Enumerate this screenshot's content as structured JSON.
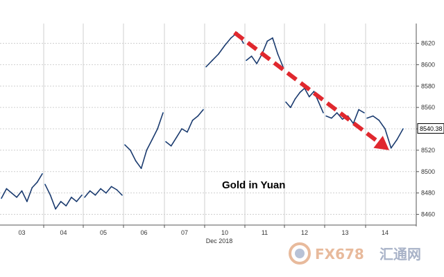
{
  "chart_data": {
    "type": "line",
    "title": "",
    "annotation": "Gold in Yuan",
    "xlabel": "Dec 2018",
    "ylabel": "",
    "x_tick_labels": [
      "03",
      "04",
      "05",
      "06",
      "07",
      "10",
      "11",
      "12",
      "13",
      "14"
    ],
    "y_tick_labels": [
      "8460",
      "8480",
      "8500",
      "8520",
      "8540",
      "8560",
      "8580",
      "8600",
      "8620"
    ],
    "ylim": [
      8450,
      8632
    ],
    "last_value_label": "8540.38",
    "grid": true,
    "legend": "none",
    "series": [
      {
        "color": "#1a3a6e",
        "points": [
          [
            "03",
            8475
          ],
          [
            "03",
            8484
          ],
          [
            "03",
            8480
          ],
          [
            "03",
            8476
          ],
          [
            "03",
            8482
          ],
          [
            "03",
            8472
          ],
          [
            "03",
            8485
          ],
          [
            "03",
            8490
          ],
          [
            "03",
            8498
          ],
          [
            "04",
            8488
          ],
          [
            "04",
            8478
          ],
          [
            "04",
            8465
          ],
          [
            "04",
            8472
          ],
          [
            "04",
            8468
          ],
          [
            "04",
            8476
          ],
          [
            "04",
            8472
          ],
          [
            "04",
            8478
          ],
          [
            "05",
            8476
          ],
          [
            "05",
            8482
          ],
          [
            "05",
            8478
          ],
          [
            "05",
            8484
          ],
          [
            "05",
            8480
          ],
          [
            "05",
            8486
          ],
          [
            "05",
            8483
          ],
          [
            "05",
            8478
          ],
          [
            "06",
            8525
          ],
          [
            "06",
            8520
          ],
          [
            "06",
            8510
          ],
          [
            "06",
            8503
          ],
          [
            "06",
            8520
          ],
          [
            "06",
            8530
          ],
          [
            "06",
            8540
          ],
          [
            "06",
            8555
          ],
          [
            "07",
            8528
          ],
          [
            "07",
            8524
          ],
          [
            "07",
            8532
          ],
          [
            "07",
            8540
          ],
          [
            "07",
            8537
          ],
          [
            "07",
            8548
          ],
          [
            "07",
            8552
          ],
          [
            "07",
            8558
          ],
          [
            "10",
            8598
          ],
          [
            "10",
            8604
          ],
          [
            "10",
            8610
          ],
          [
            "10",
            8618
          ],
          [
            "10",
            8625
          ],
          [
            "10",
            8630
          ],
          [
            "10",
            8620
          ],
          [
            "11",
            8604
          ],
          [
            "11",
            8608
          ],
          [
            "11",
            8601
          ],
          [
            "11",
            8610
          ],
          [
            "11",
            8622
          ],
          [
            "11",
            8625
          ],
          [
            "11",
            8610
          ],
          [
            "11",
            8598
          ],
          [
            "12",
            8565
          ],
          [
            "12",
            8560
          ],
          [
            "12",
            8568
          ],
          [
            "12",
            8574
          ],
          [
            "12",
            8578
          ],
          [
            "12",
            8570
          ],
          [
            "12",
            8575
          ],
          [
            "12",
            8565
          ],
          [
            "12",
            8555
          ],
          [
            "13",
            8552
          ],
          [
            "13",
            8550
          ],
          [
            "13",
            8555
          ],
          [
            "13",
            8549
          ],
          [
            "13",
            8552
          ],
          [
            "13",
            8545
          ],
          [
            "13",
            8558
          ],
          [
            "13",
            8555
          ],
          [
            "14",
            8550
          ],
          [
            "14",
            8552
          ],
          [
            "14",
            8548
          ],
          [
            "14",
            8540
          ],
          [
            "14",
            8522
          ],
          [
            "14",
            8530
          ],
          [
            "14",
            8540
          ]
        ]
      }
    ],
    "trend_arrow": {
      "color": "#e0282e",
      "from": [
        "10",
        8630
      ],
      "to": [
        "14",
        8520
      ]
    }
  },
  "watermark": {
    "brand": "FX678",
    "chinese": "汇通网",
    "brand_color": "#e8ba9c",
    "chinese_color": "#a9b3c8"
  }
}
